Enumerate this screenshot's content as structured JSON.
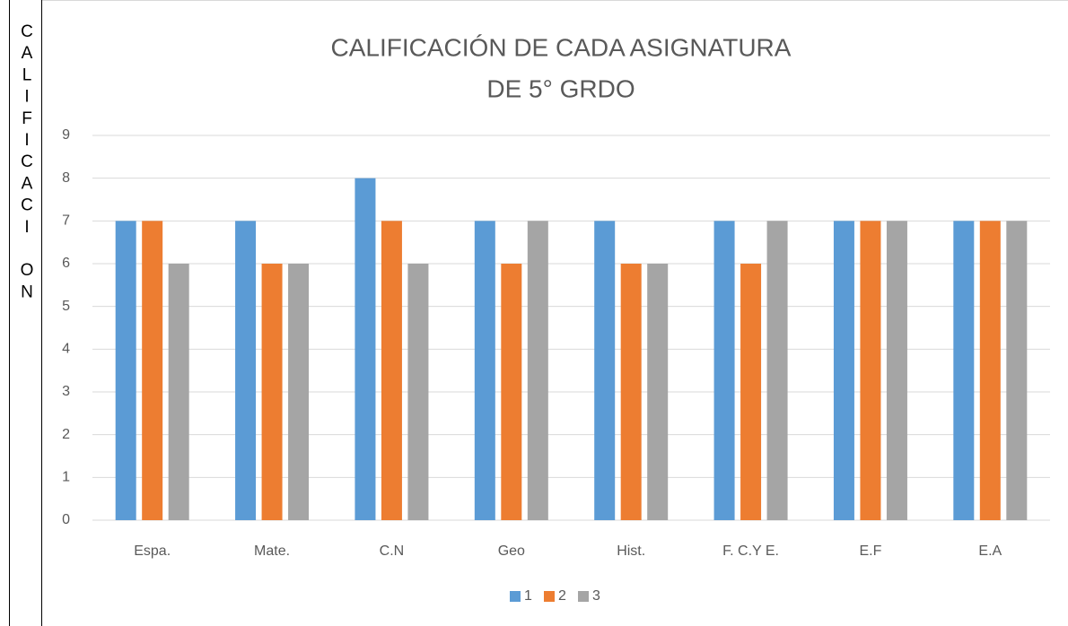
{
  "chart_data": {
    "type": "bar",
    "title": [
      "CALIFICACIÓN DE CADA ASIGNATURA",
      "DE 5° GRDO"
    ],
    "y_label": "CALIFICACI ON",
    "categories": [
      "Espa.",
      "Mate.",
      "C.N",
      "Geo",
      "Hist.",
      "F. C.Y E.",
      "E.F",
      "E.A"
    ],
    "series": [
      {
        "name": "1",
        "color": "#5b9bd5",
        "values": [
          7,
          7,
          8,
          7,
          7,
          7,
          7,
          7
        ]
      },
      {
        "name": "2",
        "color": "#ed7d31",
        "values": [
          7,
          6,
          7,
          6,
          6,
          6,
          7,
          7
        ]
      },
      {
        "name": "3",
        "color": "#a5a5a5",
        "values": [
          6,
          6,
          6,
          7,
          6,
          7,
          7,
          7
        ]
      }
    ],
    "ylim": [
      0,
      9
    ],
    "yticks": [
      0,
      1,
      2,
      3,
      4,
      5,
      6,
      7,
      8,
      9
    ],
    "grid": true,
    "legend": "bottom"
  }
}
